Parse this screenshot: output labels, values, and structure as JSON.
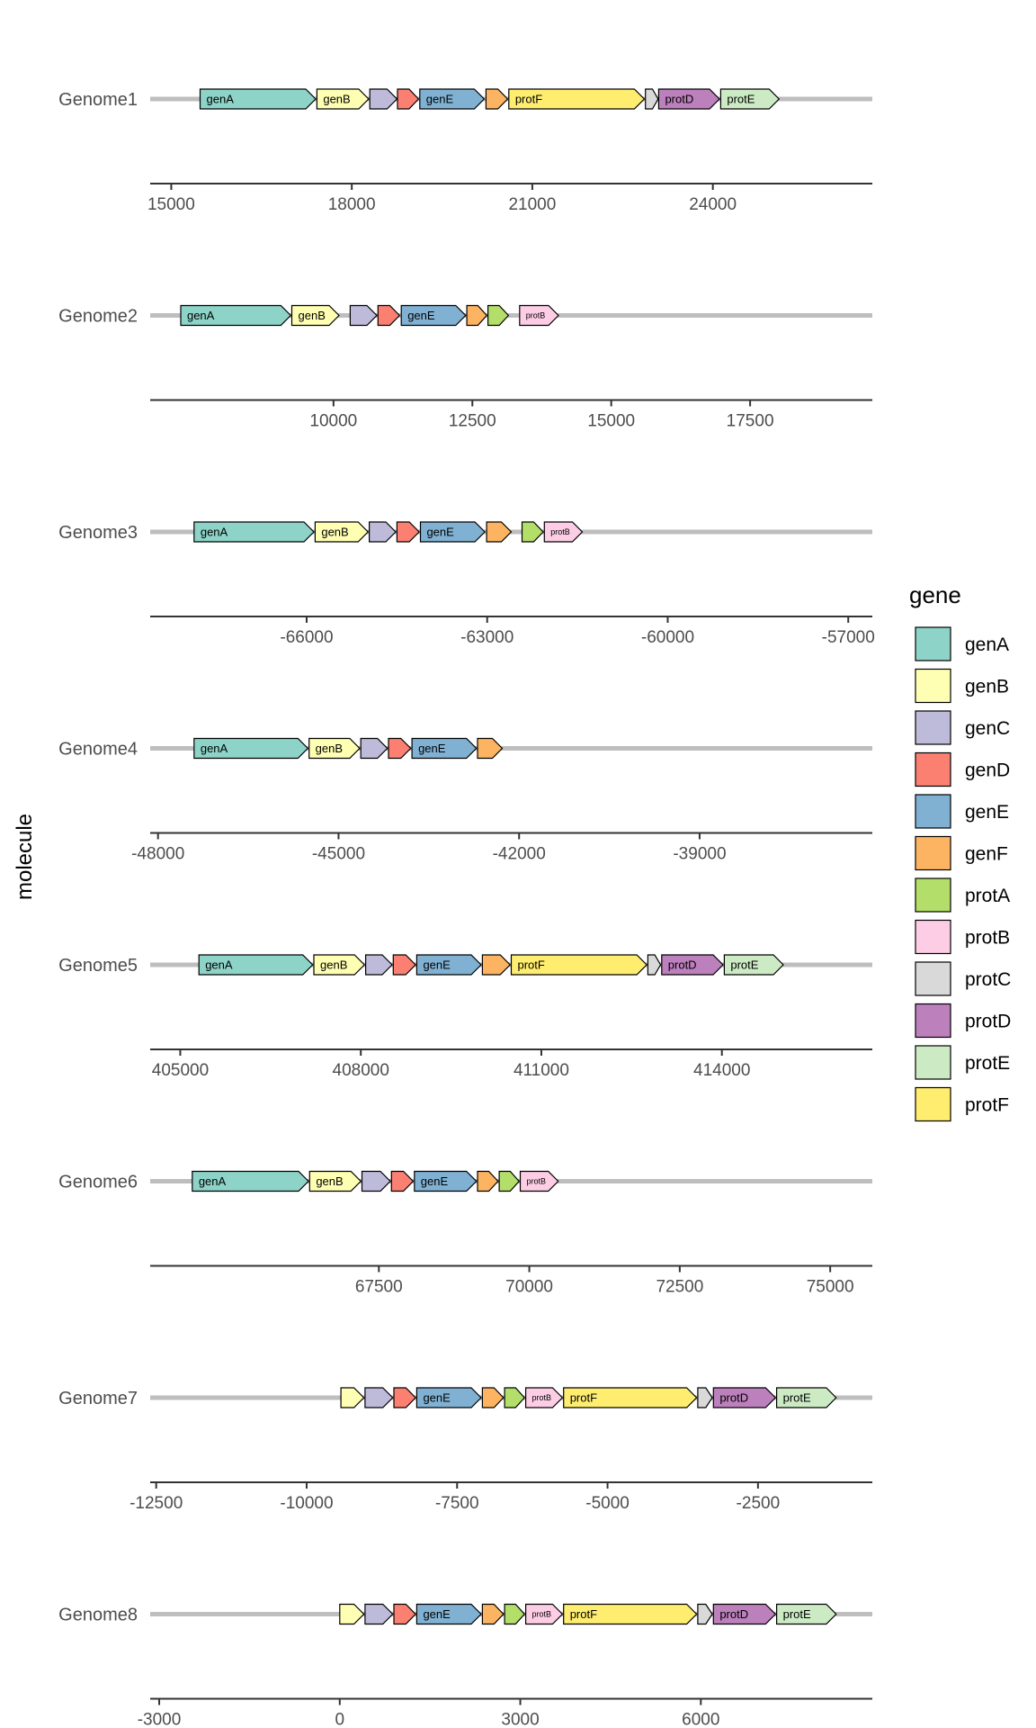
{
  "chart_data": {
    "type": "gene-arrow-map",
    "ylabel": "molecule",
    "legend": {
      "title": "gene",
      "placement": "right",
      "entries": [
        "genA",
        "genB",
        "genC",
        "genD",
        "genE",
        "genF",
        "protA",
        "protB",
        "protC",
        "protD",
        "protE",
        "protF"
      ]
    },
    "colors": {
      "genA": "#8dd3c7",
      "genB": "#ffffb3",
      "genC": "#bebada",
      "genD": "#fb8072",
      "genE": "#80b1d3",
      "genF": "#fdb462",
      "protA": "#b3de69",
      "protB": "#fccde5",
      "protC": "#d9d9d9",
      "protD": "#bc80bd",
      "protE": "#ccebc5",
      "protF": "#ffed6f"
    },
    "molecules": [
      {
        "name": "Genome1",
        "xlim": [
          14650,
          26650
        ],
        "ticks": [
          15000,
          18000,
          21000,
          24000
        ],
        "genes": [
          {
            "gene": "genA",
            "start": 15480,
            "end": 17400,
            "label": "genA"
          },
          {
            "gene": "genB",
            "start": 17420,
            "end": 18280,
            "label": "genB"
          },
          {
            "gene": "genC",
            "start": 18300,
            "end": 18750,
            "label": ""
          },
          {
            "gene": "genD",
            "start": 18760,
            "end": 19110,
            "label": ""
          },
          {
            "gene": "genE",
            "start": 19130,
            "end": 20200,
            "label": "genE"
          },
          {
            "gene": "genF",
            "start": 20230,
            "end": 20590,
            "label": ""
          },
          {
            "gene": "protF",
            "start": 20610,
            "end": 22860,
            "label": "protF"
          },
          {
            "gene": "protC",
            "start": 22880,
            "end": 23090,
            "label": ""
          },
          {
            "gene": "protD",
            "start": 23100,
            "end": 24110,
            "label": "protD"
          },
          {
            "gene": "protE",
            "start": 24130,
            "end": 25100,
            "label": "protE"
          }
        ]
      },
      {
        "name": "Genome2",
        "xlim": [
          6700,
          19700
        ],
        "ticks": [
          10000,
          12500,
          15000,
          17500
        ],
        "genes": [
          {
            "gene": "genA",
            "start": 7250,
            "end": 9230,
            "label": "genA"
          },
          {
            "gene": "genB",
            "start": 9250,
            "end": 10100,
            "label": "genB"
          },
          {
            "gene": "genC",
            "start": 10300,
            "end": 10780,
            "label": ""
          },
          {
            "gene": "genD",
            "start": 10800,
            "end": 11190,
            "label": ""
          },
          {
            "gene": "genE",
            "start": 11220,
            "end": 12380,
            "label": "genE"
          },
          {
            "gene": "genF",
            "start": 12400,
            "end": 12760,
            "label": ""
          },
          {
            "gene": "protA",
            "start": 12780,
            "end": 13150,
            "label": ""
          },
          {
            "gene": "protB",
            "start": 13350,
            "end": 14050,
            "label": "protB"
          }
        ]
      },
      {
        "name": "Genome3",
        "xlim": [
          -68600,
          -56600
        ],
        "ticks": [
          -66000,
          -63000,
          -60000,
          -57000
        ],
        "genes": [
          {
            "gene": "genA",
            "start": -67870,
            "end": -65880,
            "label": "genA"
          },
          {
            "gene": "genB",
            "start": -65860,
            "end": -64980,
            "label": "genB"
          },
          {
            "gene": "genC",
            "start": -64960,
            "end": -64520,
            "label": ""
          },
          {
            "gene": "genD",
            "start": -64500,
            "end": -64130,
            "label": ""
          },
          {
            "gene": "genE",
            "start": -64110,
            "end": -63040,
            "label": "genE"
          },
          {
            "gene": "genF",
            "start": -63010,
            "end": -62600,
            "label": ""
          },
          {
            "gene": "protA",
            "start": -62420,
            "end": -62070,
            "label": ""
          },
          {
            "gene": "protB",
            "start": -62050,
            "end": -61420,
            "label": "protB"
          }
        ]
      },
      {
        "name": "Genome4",
        "xlim": [
          -48130,
          -36130
        ],
        "ticks": [
          -48000,
          -45000,
          -42000,
          -39000
        ],
        "genes": [
          {
            "gene": "genA",
            "start": -47400,
            "end": -45510,
            "label": "genA"
          },
          {
            "gene": "genB",
            "start": -45490,
            "end": -44650,
            "label": "genB"
          },
          {
            "gene": "genC",
            "start": -44630,
            "end": -44190,
            "label": ""
          },
          {
            "gene": "genD",
            "start": -44170,
            "end": -43800,
            "label": ""
          },
          {
            "gene": "genE",
            "start": -43780,
            "end": -42710,
            "label": "genE"
          },
          {
            "gene": "genF",
            "start": -42690,
            "end": -42280,
            "label": ""
          }
        ]
      },
      {
        "name": "Genome5",
        "xlim": [
          404500,
          416500
        ],
        "ticks": [
          405000,
          408000,
          411000,
          414000
        ],
        "genes": [
          {
            "gene": "genA",
            "start": 405310,
            "end": 407200,
            "label": "genA"
          },
          {
            "gene": "genB",
            "start": 407220,
            "end": 408060,
            "label": "genB"
          },
          {
            "gene": "genC",
            "start": 408080,
            "end": 408520,
            "label": ""
          },
          {
            "gene": "genD",
            "start": 408540,
            "end": 408910,
            "label": ""
          },
          {
            "gene": "genE",
            "start": 408930,
            "end": 410000,
            "label": "genE"
          },
          {
            "gene": "genF",
            "start": 410020,
            "end": 410480,
            "label": ""
          },
          {
            "gene": "protF",
            "start": 410500,
            "end": 412750,
            "label": "protF"
          },
          {
            "gene": "protC",
            "start": 412770,
            "end": 412980,
            "label": ""
          },
          {
            "gene": "protD",
            "start": 413000,
            "end": 414020,
            "label": "protD"
          },
          {
            "gene": "protE",
            "start": 414040,
            "end": 415020,
            "label": "protE"
          }
        ]
      },
      {
        "name": "Genome6",
        "xlim": [
          63700,
          75700
        ],
        "ticks": [
          67500,
          70000,
          72500,
          75000
        ],
        "genes": [
          {
            "gene": "genA",
            "start": 64400,
            "end": 66330,
            "label": "genA"
          },
          {
            "gene": "genB",
            "start": 66350,
            "end": 67200,
            "label": "genB"
          },
          {
            "gene": "genC",
            "start": 67220,
            "end": 67690,
            "label": ""
          },
          {
            "gene": "genD",
            "start": 67710,
            "end": 68070,
            "label": ""
          },
          {
            "gene": "genE",
            "start": 68090,
            "end": 69120,
            "label": "genE"
          },
          {
            "gene": "genF",
            "start": 69140,
            "end": 69480,
            "label": ""
          },
          {
            "gene": "protA",
            "start": 69500,
            "end": 69830,
            "label": ""
          },
          {
            "gene": "protB",
            "start": 69850,
            "end": 70480,
            "label": "protB"
          }
        ]
      },
      {
        "name": "Genome7",
        "xlim": [
          -12600,
          -600
        ],
        "ticks": [
          -12500,
          -10000,
          -7500,
          -5000,
          -2500
        ],
        "genes": [
          {
            "gene": "genB",
            "start": -9430,
            "end": -9050,
            "label": ""
          },
          {
            "gene": "genC",
            "start": -9030,
            "end": -8570,
            "label": ""
          },
          {
            "gene": "genD",
            "start": -8550,
            "end": -8190,
            "label": ""
          },
          {
            "gene": "genE",
            "start": -8170,
            "end": -7100,
            "label": "genE"
          },
          {
            "gene": "genF",
            "start": -7080,
            "end": -6730,
            "label": ""
          },
          {
            "gene": "protA",
            "start": -6710,
            "end": -6380,
            "label": ""
          },
          {
            "gene": "protB",
            "start": -6360,
            "end": -5750,
            "label": "protB"
          },
          {
            "gene": "protF",
            "start": -5730,
            "end": -3520,
            "label": "protF"
          },
          {
            "gene": "protC",
            "start": -3500,
            "end": -3260,
            "label": ""
          },
          {
            "gene": "protD",
            "start": -3240,
            "end": -2210,
            "label": "protD"
          },
          {
            "gene": "protE",
            "start": -2190,
            "end": -1200,
            "label": "protE"
          }
        ]
      },
      {
        "name": "Genome8",
        "xlim": [
          -3150,
          8850
        ],
        "ticks": [
          -3000,
          0,
          3000,
          6000
        ],
        "genes": [
          {
            "gene": "genB",
            "start": 0,
            "end": 400,
            "label": ""
          },
          {
            "gene": "genC",
            "start": 420,
            "end": 880,
            "label": ""
          },
          {
            "gene": "genD",
            "start": 900,
            "end": 1260,
            "label": ""
          },
          {
            "gene": "genE",
            "start": 1280,
            "end": 2350,
            "label": "genE"
          },
          {
            "gene": "genF",
            "start": 2370,
            "end": 2720,
            "label": ""
          },
          {
            "gene": "protA",
            "start": 2740,
            "end": 3070,
            "label": ""
          },
          {
            "gene": "protB",
            "start": 3090,
            "end": 3700,
            "label": "protB"
          },
          {
            "gene": "protF",
            "start": 3720,
            "end": 5930,
            "label": "protF"
          },
          {
            "gene": "protC",
            "start": 5950,
            "end": 6190,
            "label": ""
          },
          {
            "gene": "protD",
            "start": 6210,
            "end": 7240,
            "label": "protD"
          },
          {
            "gene": "protE",
            "start": 7260,
            "end": 8250,
            "label": "protE"
          }
        ]
      }
    ]
  }
}
